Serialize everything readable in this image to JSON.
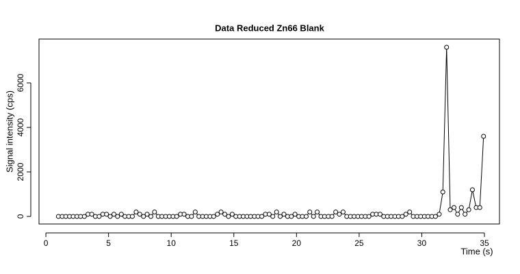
{
  "chart_data": {
    "type": "line",
    "markers": true,
    "title": "Data Reduced Zn66 Blank",
    "x_label": "Time (s)",
    "y_label": "Signal intensity (cps)",
    "color": "#000000",
    "xlim": [
      -0.55,
      36.2
    ],
    "ylim": [
      -340,
      7970
    ],
    "xticks": [
      0,
      5,
      10,
      15,
      20,
      25,
      30,
      35
    ],
    "yticks": [
      0,
      2000,
      4000,
      6000
    ],
    "x": [
      1.0,
      1.3,
      1.59,
      1.89,
      2.18,
      2.48,
      2.77,
      3.07,
      3.36,
      3.66,
      3.95,
      4.25,
      4.54,
      4.84,
      5.13,
      5.43,
      5.72,
      6.02,
      6.31,
      6.61,
      6.9,
      7.2,
      7.49,
      7.79,
      8.08,
      8.38,
      8.67,
      8.97,
      9.26,
      9.56,
      9.85,
      10.15,
      10.44,
      10.74,
      11.03,
      11.33,
      11.62,
      11.92,
      12.21,
      12.51,
      12.8,
      13.1,
      13.39,
      13.69,
      13.98,
      14.28,
      14.57,
      14.87,
      15.16,
      15.46,
      15.75,
      16.05,
      16.34,
      16.64,
      16.93,
      17.23,
      17.52,
      17.82,
      18.11,
      18.41,
      18.7,
      19.0,
      19.29,
      19.59,
      19.88,
      20.18,
      20.47,
      20.77,
      21.06,
      21.36,
      21.65,
      21.95,
      22.24,
      22.54,
      22.83,
      23.13,
      23.42,
      23.72,
      24.01,
      24.31,
      24.6,
      24.9,
      25.19,
      25.49,
      25.78,
      26.08,
      26.37,
      26.67,
      26.96,
      27.26,
      27.55,
      27.85,
      28.14,
      28.44,
      28.73,
      29.03,
      29.32,
      29.62,
      29.91,
      30.21,
      30.5,
      30.8,
      31.09,
      31.39,
      31.68,
      31.98,
      32.27,
      32.57,
      32.86,
      33.16,
      33.45,
      33.75,
      34.04,
      34.34,
      34.63,
      34.93
    ],
    "values": [
      0,
      0,
      0,
      0,
      0,
      0,
      0,
      0,
      100,
      100,
      0,
      0,
      100,
      100,
      0,
      100,
      0,
      100,
      0,
      0,
      0,
      200,
      100,
      0,
      100,
      0,
      200,
      0,
      0,
      0,
      0,
      0,
      0,
      100,
      100,
      0,
      0,
      200,
      0,
      0,
      0,
      0,
      0,
      100,
      200,
      100,
      0,
      100,
      0,
      0,
      0,
      0,
      0,
      0,
      0,
      0,
      100,
      100,
      0,
      200,
      0,
      100,
      0,
      0,
      100,
      0,
      0,
      0,
      200,
      0,
      200,
      0,
      0,
      0,
      0,
      200,
      100,
      200,
      0,
      0,
      0,
      0,
      0,
      0,
      0,
      100,
      100,
      100,
      0,
      0,
      0,
      0,
      0,
      0,
      100,
      200,
      0,
      0,
      0,
      0,
      0,
      0,
      0,
      100,
      1100,
      7600,
      300,
      400,
      100,
      400,
      100,
      300,
      1200,
      400,
      400,
      3600
    ]
  }
}
